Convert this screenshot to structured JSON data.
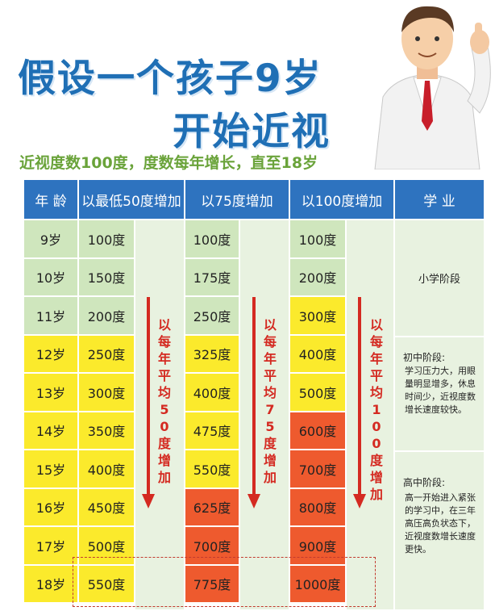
{
  "title_line1": "假设一个孩子9岁",
  "title_line2": "开始近视",
  "subtitle": "近视度数100度，度数每年增长，直至18岁",
  "headers": [
    "年 龄",
    "以最低50度增加",
    "以75度增加",
    "以100度增加",
    "学 业"
  ],
  "ages": [
    "9岁",
    "10岁",
    "11岁",
    "12岁",
    "13岁",
    "14岁",
    "15岁",
    "16岁",
    "17岁",
    "18岁"
  ],
  "col50": [
    "100度",
    "150度",
    "200度",
    "250度",
    "300度",
    "350度",
    "400度",
    "450度",
    "500度",
    "550度"
  ],
  "col75": [
    "100度",
    "175度",
    "250度",
    "325度",
    "400度",
    "475度",
    "550度",
    "625度",
    "700度",
    "775度"
  ],
  "col100": [
    "100度",
    "200度",
    "300度",
    "400度",
    "500度",
    "600度",
    "700度",
    "800度",
    "900度",
    "1000度"
  ],
  "arrow50": "以每年平均50度增加",
  "arrow75": "以每年平均75度增加",
  "arrow100": "以每年平均100度增加",
  "study": {
    "primary": "小学阶段",
    "middle_title": "初中阶段:",
    "middle_body": "学习压力大，用眼量明显增多，休息时间少，近视度数增长速度较快。",
    "high_title": "高中阶段:",
    "high_body": "高一开始进入紧张的学习中，在三年高压高负状态下，近视度数增长速度更快。"
  },
  "colors": {
    "header_blue": "#2e73bf",
    "green": "#cfe6bd",
    "yellow": "#fbea2c",
    "orange": "#ee5a2e",
    "title_blue": "#1f6fb5",
    "subtitle_green": "#6aa33a",
    "arrow_red": "#d42a21"
  },
  "levels50": [
    "g",
    "g",
    "g",
    "y",
    "y",
    "y",
    "y",
    "y",
    "y",
    "y"
  ],
  "levels75": [
    "g",
    "g",
    "g",
    "y",
    "y",
    "y",
    "y",
    "o",
    "o",
    "o"
  ],
  "levels100": [
    "g",
    "g",
    "y",
    "y",
    "y",
    "o",
    "o",
    "o",
    "o",
    "o"
  ],
  "levels_age": [
    "g",
    "g",
    "g",
    "y",
    "y",
    "y",
    "y",
    "y",
    "y",
    "y"
  ]
}
